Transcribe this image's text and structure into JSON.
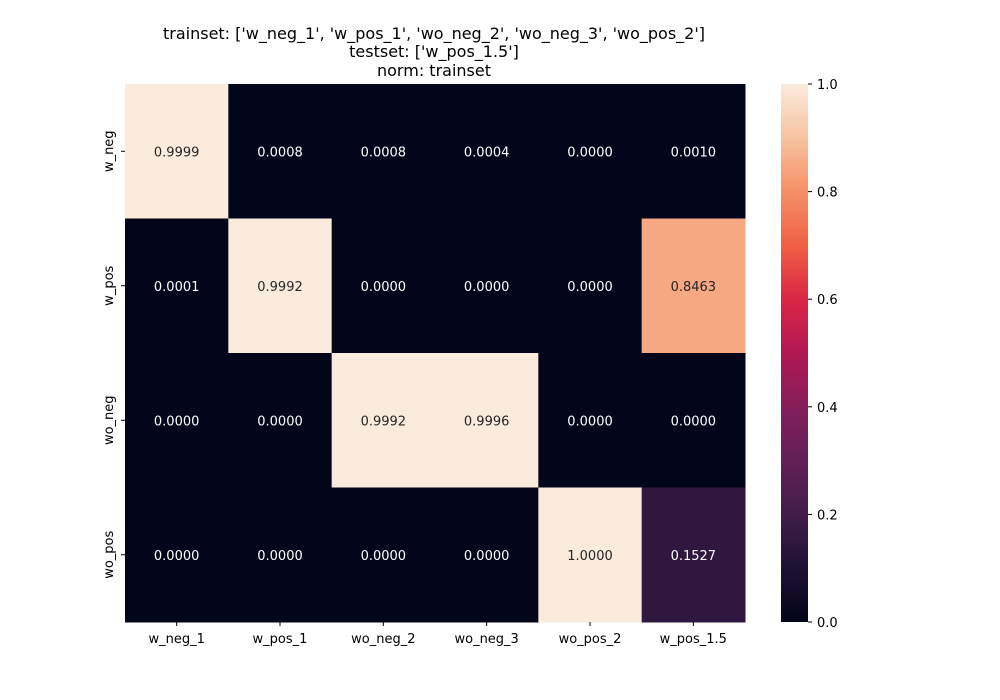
{
  "chart_data": {
    "type": "heatmap",
    "title_lines": [
      "trainset: ['w_neg_1', 'w_pos_1', 'wo_neg_2', 'wo_neg_3', 'wo_pos_2']",
      "testset: ['w_pos_1.5']",
      "norm: trainset"
    ],
    "x_categories": [
      "w_neg_1",
      "w_pos_1",
      "wo_neg_2",
      "wo_neg_3",
      "wo_pos_2",
      "w_pos_1.5"
    ],
    "y_categories": [
      "w_neg",
      "w_pos",
      "wo_neg",
      "wo_pos"
    ],
    "values": [
      [
        0.9999,
        0.0008,
        0.0008,
        0.0004,
        0.0,
        0.001
      ],
      [
        0.0001,
        0.9992,
        0.0,
        0.0,
        0.0,
        0.8463
      ],
      [
        0.0,
        0.0,
        0.9992,
        0.9996,
        0.0,
        0.0
      ],
      [
        0.0,
        0.0,
        0.0,
        0.0,
        1.0,
        0.1527
      ]
    ],
    "value_labels": [
      [
        "0.9999",
        "0.0008",
        "0.0008",
        "0.0004",
        "0.0000",
        "0.0010"
      ],
      [
        "0.0001",
        "0.9992",
        "0.0000",
        "0.0000",
        "0.0000",
        "0.8463"
      ],
      [
        "0.0000",
        "0.0000",
        "0.9992",
        "0.9996",
        "0.0000",
        "0.0000"
      ],
      [
        "0.0000",
        "0.0000",
        "0.0000",
        "0.0000",
        "1.0000",
        "0.1527"
      ]
    ],
    "colormap": "rocket",
    "colorbar": {
      "range": [
        0.0,
        1.0
      ],
      "ticks": [
        0.0,
        0.2,
        0.4,
        0.6,
        0.8,
        1.0
      ],
      "tick_labels": [
        "0.0",
        "0.2",
        "0.4",
        "0.6",
        "0.8",
        "1.0"
      ]
    }
  }
}
